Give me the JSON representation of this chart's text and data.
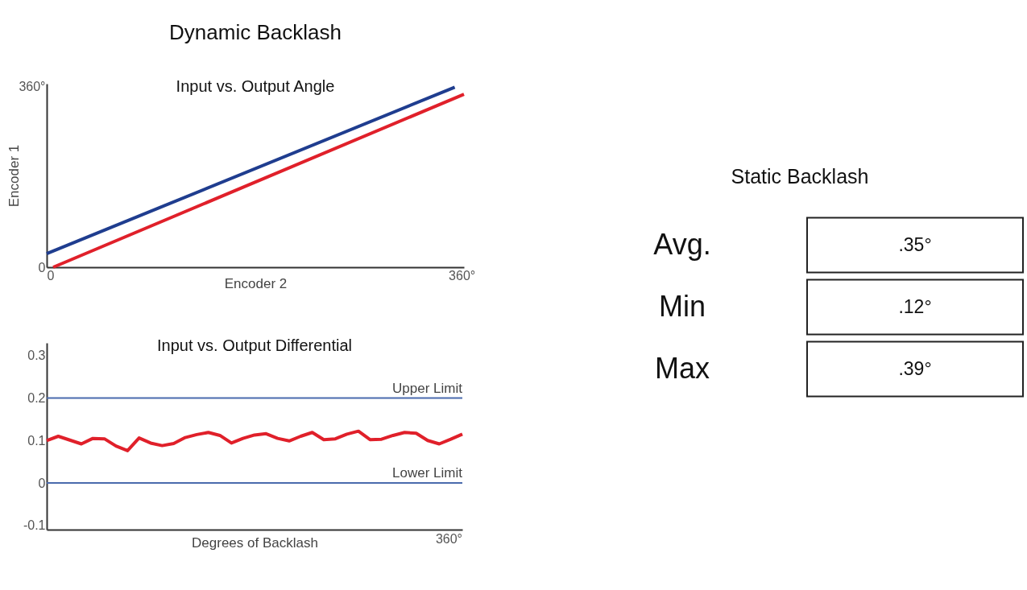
{
  "chart_data": [
    {
      "type": "line",
      "title": "Dynamic Backlash",
      "subtitle": "Input vs. Output Angle",
      "xlabel": "Encoder 2",
      "ylabel": "Encoder 1",
      "xlim": [
        0,
        362
      ],
      "ylim": [
        0,
        365
      ],
      "xticks": [
        0,
        {
          "value": 360,
          "label": "360°"
        }
      ],
      "yticks": [
        0,
        {
          "value": 360,
          "label": "360°"
        }
      ],
      "grid": false,
      "series": [
        {
          "color": "#1f3d8f",
          "x": [
            0,
            354
          ],
          "values": [
            27,
            358
          ]
        },
        {
          "color": "#e0202a",
          "x": [
            5.6,
            362
          ],
          "values": [
            0,
            344
          ]
        }
      ]
    },
    {
      "type": "line",
      "subtitle": "Input vs. Output Differential",
      "xlabel": "Degrees of Backlash",
      "categories": [
        null,
        null,
        null,
        null,
        null,
        null,
        null,
        null,
        null,
        null,
        null,
        null,
        null,
        null,
        null,
        null,
        null,
        null,
        null,
        null,
        null,
        null,
        null,
        null,
        null,
        null,
        null,
        null,
        null,
        null,
        null,
        null,
        null,
        null,
        null,
        null,
        null
      ],
      "annotations": [
        "360°"
      ],
      "ylim": [
        -0.11,
        0.33
      ],
      "yticks": [
        -0.1,
        0,
        0.1,
        0.2,
        0.3
      ],
      "grid": false,
      "ref_lines": [
        {
          "axis": "y",
          "value": 0.2,
          "label": "Upper Limit",
          "color": "#4a6aad"
        },
        {
          "axis": "y",
          "value": 0,
          "label": "Lower Limit",
          "color": "#4a6aad"
        }
      ],
      "series": [
        {
          "color": "#e0202a",
          "values": [
            0.1,
            0.11,
            0.101,
            0.092,
            0.105,
            0.104,
            0.087,
            0.076,
            0.106,
            0.094,
            0.088,
            0.093,
            0.107,
            0.114,
            0.119,
            0.112,
            0.094,
            0.105,
            0.113,
            0.116,
            0.105,
            0.099,
            0.11,
            0.119,
            0.102,
            0.104,
            0.115,
            0.122,
            0.102,
            0.103,
            0.112,
            0.119,
            0.117,
            0.1,
            0.092,
            0.103,
            0.115
          ]
        }
      ]
    },
    {
      "type": "other",
      "title": "Static Backlash",
      "categories": [
        "Avg.",
        "Min",
        "Max"
      ],
      "value_labels": [
        ".35°",
        ".12°",
        ".39°"
      ]
    }
  ]
}
